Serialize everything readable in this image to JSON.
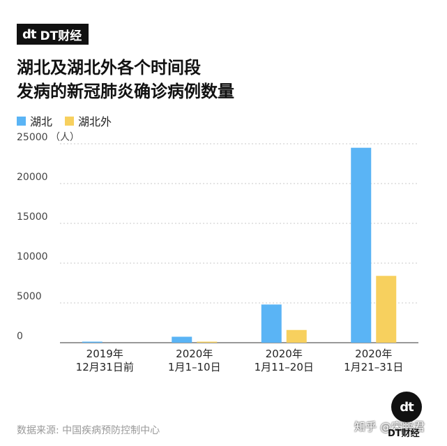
{
  "brand": {
    "logo": "dt",
    "name": "DT财经"
  },
  "title": {
    "line1": "湖北及湖北外各个时间段",
    "line2": "发病的新冠肺炎确诊病例数量"
  },
  "legend": [
    {
      "label": "湖北",
      "color": "#5ab4f5"
    },
    {
      "label": "湖北外",
      "color": "#f7d05e"
    }
  ],
  "source": "数据来源: 中国疾病预防控制中心",
  "footer": {
    "logo": "dt",
    "logo_text": "DT财经",
    "credit": "知乎 @宋鹏君"
  },
  "chart_data": {
    "type": "bar",
    "categories": [
      [
        "2019年",
        "12月31日前"
      ],
      [
        "2020年",
        "1月1–10日"
      ],
      [
        "2020年",
        "1月11–20日"
      ],
      [
        "2020年",
        "1月21–31日"
      ]
    ],
    "series": [
      {
        "name": "湖北",
        "values": [
          100,
          750,
          4800,
          24500
        ],
        "color": "#5ab4f5"
      },
      {
        "name": "湖北外",
        "values": [
          0,
          100,
          1600,
          8400
        ],
        "color": "#f7d05e"
      }
    ],
    "y_ticks": [
      0,
      5000,
      10000,
      15000,
      20000,
      25000
    ],
    "y_unit": "（人）",
    "ylim": [
      0,
      25000
    ],
    "grid": true
  }
}
